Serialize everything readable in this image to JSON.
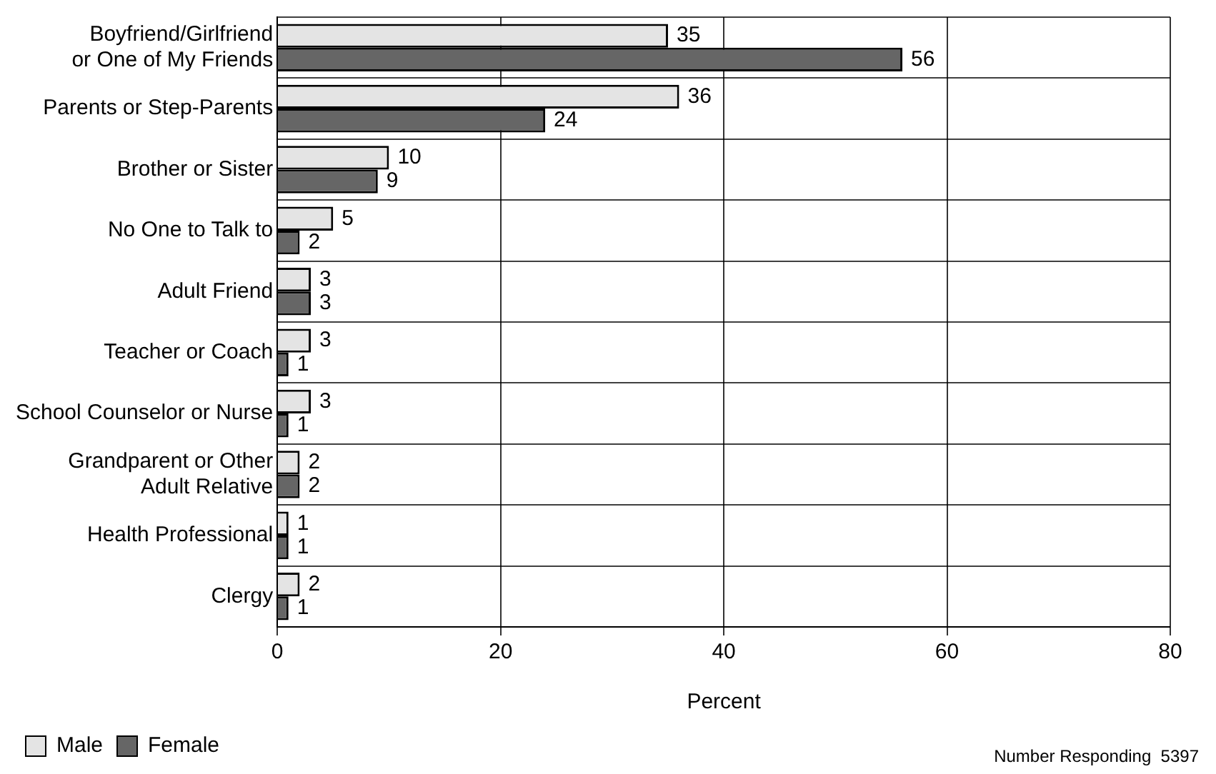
{
  "chart_data": {
    "type": "bar",
    "orientation": "horizontal",
    "xlabel": "Percent",
    "categories": [
      "Boyfriend/Girlfriend or One of My Friends",
      "Parents or Step-Parents",
      "Brother or Sister",
      "No One to Talk to",
      "Adult Friend",
      "Teacher or Coach",
      "School Counselor or Nurse",
      "Grandparent or Other Adult Relative",
      "Health Professional",
      "Clergy"
    ],
    "series": [
      {
        "name": "Male",
        "color": "#e4e4e4",
        "values": [
          35,
          36,
          10,
          5,
          3,
          3,
          3,
          2,
          1,
          2
        ]
      },
      {
        "name": "Female",
        "color": "#666666",
        "values": [
          56,
          24,
          9,
          2,
          3,
          1,
          1,
          2,
          1,
          1
        ]
      }
    ],
    "xlim": [
      0,
      80
    ],
    "xticks": [
      0,
      20,
      40,
      60,
      80
    ],
    "grid": true,
    "legend": "bottom left",
    "data_labels": true,
    "annotations": [
      "Number Responding  5397"
    ]
  }
}
